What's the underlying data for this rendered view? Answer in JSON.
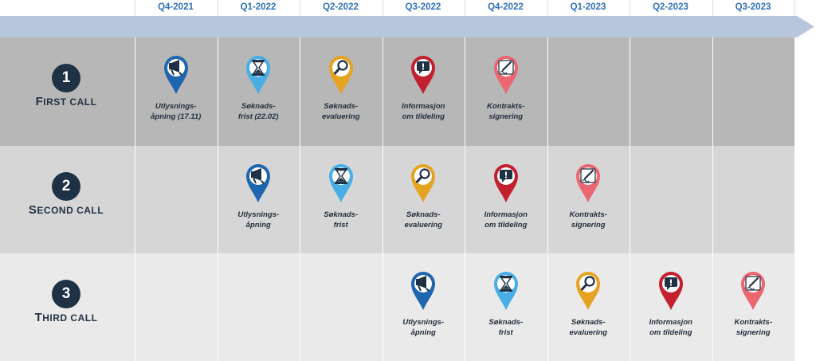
{
  "quarters": [
    "Q4-2021",
    "Q1-2022",
    "Q2-2022",
    "Q3-2022",
    "Q4-2022",
    "Q1-2023",
    "Q2-2023",
    "Q3-2023"
  ],
  "colors": {
    "header_text": "#2e6fb7",
    "arrow": "#b7c6dc",
    "row1_bg": "#b7b7b7",
    "row2_bg": "#d6d6d6",
    "row3_bg": "#eaeaea",
    "badge": "#1f3144",
    "utlysning": "#1f66b1",
    "soknadsfrist": "#49aee6",
    "evaluering": "#e5a322",
    "informasjon": "#c2202e",
    "kontrakt": "#ea6670"
  },
  "calls": [
    {
      "number": "1",
      "label_first": "F",
      "label_rest": "IRST CALL",
      "milestones": [
        {
          "quarter": 0,
          "type": "utlysning",
          "icon": "megaphone-icon",
          "line1": "Utlysnings-",
          "line2": "åpning (17.11)"
        },
        {
          "quarter": 1,
          "type": "soknadsfrist",
          "icon": "hourglass-icon",
          "line1": "Søknads-",
          "line2": "frist (22.02)"
        },
        {
          "quarter": 2,
          "type": "evaluering",
          "icon": "magnifier-icon",
          "line1": "Søknads-",
          "line2": "evaluering"
        },
        {
          "quarter": 3,
          "type": "informasjon",
          "icon": "notice-icon",
          "line1": "Informasjon",
          "line2": "om tildeling"
        },
        {
          "quarter": 4,
          "type": "kontrakt",
          "icon": "signature-icon",
          "line1": "Kontrakts-",
          "line2": "signering"
        }
      ]
    },
    {
      "number": "2",
      "label_first": "S",
      "label_rest": "ECOND CALL",
      "milestones": [
        {
          "quarter": 1,
          "type": "utlysning",
          "icon": "megaphone-icon",
          "line1": "Utlysnings-",
          "line2": "åpning"
        },
        {
          "quarter": 2,
          "type": "soknadsfrist",
          "icon": "hourglass-icon",
          "line1": "Søknads-",
          "line2": "frist"
        },
        {
          "quarter": 3,
          "type": "evaluering",
          "icon": "magnifier-icon",
          "line1": "Søknads-",
          "line2": "evaluering"
        },
        {
          "quarter": 4,
          "type": "informasjon",
          "icon": "notice-icon",
          "line1": "Informasjon",
          "line2": "om tildeling"
        },
        {
          "quarter": 5,
          "type": "kontrakt",
          "icon": "signature-icon",
          "line1": "Kontrakts-",
          "line2": "signering"
        }
      ]
    },
    {
      "number": "3",
      "label_first": "T",
      "label_rest": "HIRD CALL",
      "milestones": [
        {
          "quarter": 3,
          "type": "utlysning",
          "icon": "megaphone-icon",
          "line1": "Utlysnings-",
          "line2": "åpning"
        },
        {
          "quarter": 4,
          "type": "soknadsfrist",
          "icon": "hourglass-icon",
          "line1": "Søknads-",
          "line2": "frist"
        },
        {
          "quarter": 5,
          "type": "evaluering",
          "icon": "magnifier-icon",
          "line1": "Søknads-",
          "line2": "evaluering"
        },
        {
          "quarter": 6,
          "type": "informasjon",
          "icon": "notice-icon",
          "line1": "Informasjon",
          "line2": "om tildeling"
        },
        {
          "quarter": 7,
          "type": "kontrakt",
          "icon": "signature-icon",
          "line1": "Kontrakts-",
          "line2": "signering"
        }
      ]
    }
  ]
}
